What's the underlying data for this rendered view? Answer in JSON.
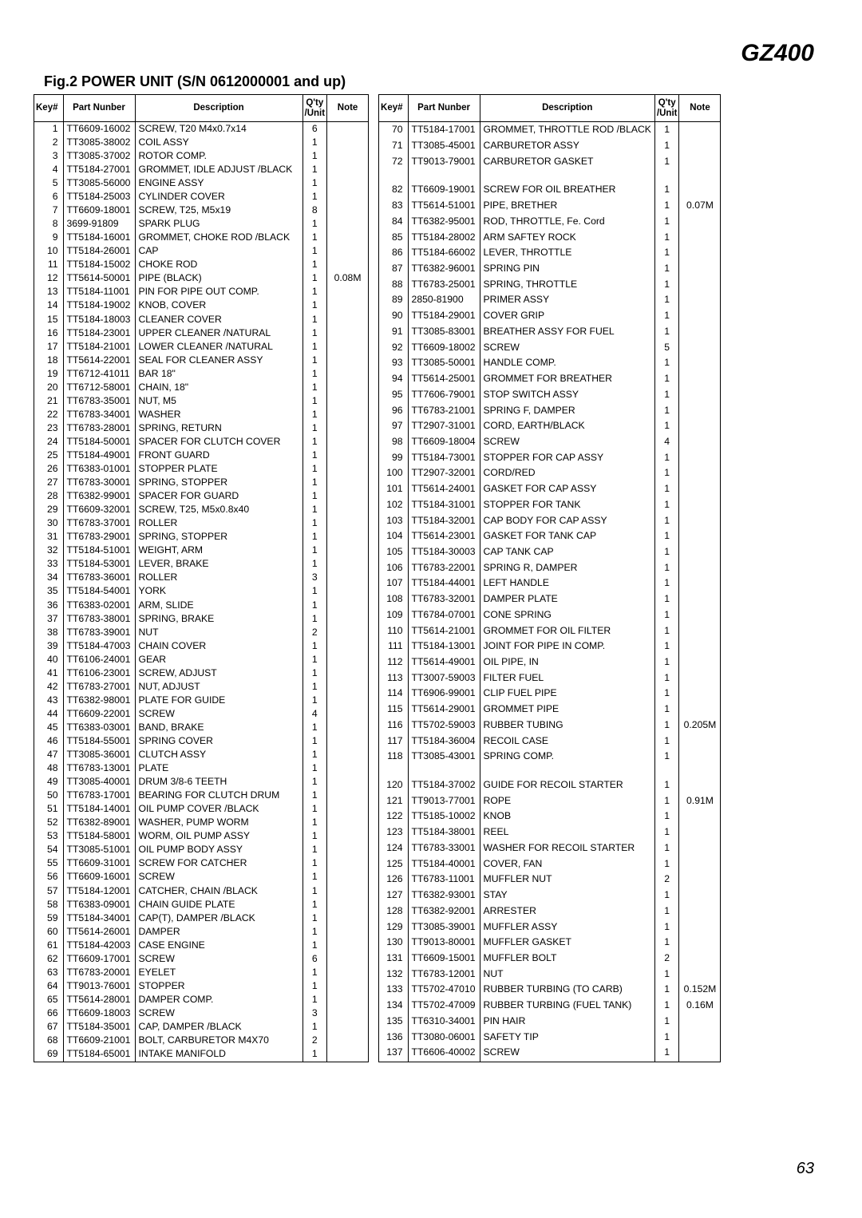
{
  "model": "GZ400",
  "figTitle": "Fig.2 POWER UNIT (S/N 0612000001 and up)",
  "pageNumber": "63",
  "headers": {
    "key": "Key#",
    "pn": "Part Nunber",
    "desc": "Description",
    "qty": "Q'ty\n/Unit",
    "note": "Note"
  },
  "left": [
    {
      "k": "1",
      "p": "TT6609-16002",
      "d": "SCREW, T20 M4x0.7x14",
      "q": "6",
      "n": ""
    },
    {
      "k": "2",
      "p": "TT3085-38002",
      "d": "COIL ASSY",
      "q": "1",
      "n": ""
    },
    {
      "k": "3",
      "p": "TT3085-37002",
      "d": "ROTOR COMP.",
      "q": "1",
      "n": ""
    },
    {
      "k": "4",
      "p": "TT5184-27001",
      "d": "GROMMET, IDLE ADJUST /BLACK",
      "q": "1",
      "n": ""
    },
    {
      "k": "5",
      "p": "TT3085-56000",
      "d": "ENGINE ASSY",
      "q": "1",
      "n": ""
    },
    {
      "k": "6",
      "p": "TT5184-25003",
      "d": "CYLINDER COVER",
      "q": "1",
      "n": ""
    },
    {
      "k": "7",
      "p": "TT6609-18001",
      "d": "SCREW, T25, M5x19",
      "q": "8",
      "n": ""
    },
    {
      "k": "8",
      "p": "3699-91809",
      "d": "SPARK PLUG",
      "q": "1",
      "n": ""
    },
    {
      "k": "9",
      "p": "TT5184-16001",
      "d": "GROMMET, CHOKE ROD /BLACK",
      "q": "1",
      "n": ""
    },
    {
      "k": "10",
      "p": "TT5184-26001",
      "d": "CAP",
      "q": "1",
      "n": ""
    },
    {
      "k": "11",
      "p": "TT5184-15002",
      "d": "CHOKE ROD",
      "q": "1",
      "n": ""
    },
    {
      "k": "12",
      "p": "TT5614-50001",
      "d": "PIPE (BLACK)",
      "q": "1",
      "n": "0.08M"
    },
    {
      "k": "13",
      "p": "TT5184-11001",
      "d": "PIN FOR PIPE OUT COMP.",
      "q": "1",
      "n": ""
    },
    {
      "k": "14",
      "p": "TT5184-19002",
      "d": "KNOB, COVER",
      "q": "1",
      "n": ""
    },
    {
      "k": "15",
      "p": "TT5184-18003",
      "d": "CLEANER COVER",
      "q": "1",
      "n": ""
    },
    {
      "k": "16",
      "p": "TT5184-23001",
      "d": "UPPER CLEANER /NATURAL",
      "q": "1",
      "n": ""
    },
    {
      "k": "17",
      "p": "TT5184-21001",
      "d": "LOWER CLEANER /NATURAL",
      "q": "1",
      "n": ""
    },
    {
      "k": "18",
      "p": "TT5614-22001",
      "d": "SEAL FOR CLEANER ASSY",
      "q": "1",
      "n": ""
    },
    {
      "k": "19",
      "p": "TT6712-41011",
      "d": "BAR 18\"",
      "q": "1",
      "n": ""
    },
    {
      "k": "20",
      "p": "TT6712-58001",
      "d": "CHAIN, 18\"",
      "q": "1",
      "n": ""
    },
    {
      "k": "21",
      "p": "TT6783-35001",
      "d": "NUT, M5",
      "q": "1",
      "n": ""
    },
    {
      "k": "22",
      "p": "TT6783-34001",
      "d": "WASHER",
      "q": "1",
      "n": ""
    },
    {
      "k": "23",
      "p": "TT6783-28001",
      "d": "SPRING, RETURN",
      "q": "1",
      "n": ""
    },
    {
      "k": "24",
      "p": "TT5184-50001",
      "d": "SPACER FOR CLUTCH COVER",
      "q": "1",
      "n": ""
    },
    {
      "k": "25",
      "p": "TT5184-49001",
      "d": "FRONT GUARD",
      "q": "1",
      "n": ""
    },
    {
      "k": "26",
      "p": "TT6383-01001",
      "d": "STOPPER PLATE",
      "q": "1",
      "n": ""
    },
    {
      "k": "27",
      "p": "TT6783-30001",
      "d": "SPRING, STOPPER",
      "q": "1",
      "n": ""
    },
    {
      "k": "28",
      "p": "TT6382-99001",
      "d": "SPACER FOR GUARD",
      "q": "1",
      "n": ""
    },
    {
      "k": "29",
      "p": "TT6609-32001",
      "d": "SCREW, T25, M5x0.8x40",
      "q": "1",
      "n": ""
    },
    {
      "k": "30",
      "p": "TT6783-37001",
      "d": "ROLLER",
      "q": "1",
      "n": ""
    },
    {
      "k": "31",
      "p": "TT6783-29001",
      "d": "SPRING, STOPPER",
      "q": "1",
      "n": ""
    },
    {
      "k": "32",
      "p": "TT5184-51001",
      "d": "WEIGHT, ARM",
      "q": "1",
      "n": ""
    },
    {
      "k": "33",
      "p": "TT5184-53001",
      "d": "LEVER, BRAKE",
      "q": "1",
      "n": ""
    },
    {
      "k": "34",
      "p": "TT6783-36001",
      "d": "ROLLER",
      "q": "3",
      "n": ""
    },
    {
      "k": "35",
      "p": "TT5184-54001",
      "d": "YORK",
      "q": "1",
      "n": ""
    },
    {
      "k": "36",
      "p": "TT6383-02001",
      "d": "ARM, SLIDE",
      "q": "1",
      "n": ""
    },
    {
      "k": "37",
      "p": "TT6783-38001",
      "d": "SPRING, BRAKE",
      "q": "1",
      "n": ""
    },
    {
      "k": "38",
      "p": "TT6783-39001",
      "d": "NUT",
      "q": "2",
      "n": ""
    },
    {
      "k": "39",
      "p": "TT5184-47003",
      "d": "CHAIN COVER",
      "q": "1",
      "n": ""
    },
    {
      "k": "40",
      "p": "TT6106-24001",
      "d": "GEAR",
      "q": "1",
      "n": ""
    },
    {
      "k": "41",
      "p": "TT6106-23001",
      "d": "SCREW, ADJUST",
      "q": "1",
      "n": ""
    },
    {
      "k": "42",
      "p": "TT6783-27001",
      "d": "NUT, ADJUST",
      "q": "1",
      "n": ""
    },
    {
      "k": "43",
      "p": "TT6382-98001",
      "d": "PLATE FOR GUIDE",
      "q": "1",
      "n": ""
    },
    {
      "k": "44",
      "p": "TT6609-22001",
      "d": "SCREW",
      "q": "4",
      "n": ""
    },
    {
      "k": "45",
      "p": "TT6383-03001",
      "d": "BAND, BRAKE",
      "q": "1",
      "n": ""
    },
    {
      "k": "46",
      "p": "TT5184-55001",
      "d": "SPRING COVER",
      "q": "1",
      "n": ""
    },
    {
      "k": "47",
      "p": "TT3085-36001",
      "d": "CLUTCH ASSY",
      "q": "1",
      "n": ""
    },
    {
      "k": "48",
      "p": "TT6783-13001",
      "d": "PLATE",
      "q": "1",
      "n": ""
    },
    {
      "k": "49",
      "p": "TT3085-40001",
      "d": "DRUM 3/8-6 TEETH",
      "q": "1",
      "n": ""
    },
    {
      "k": "50",
      "p": "TT6783-17001",
      "d": "BEARING FOR CLUTCH DRUM",
      "q": "1",
      "n": ""
    },
    {
      "k": "51",
      "p": "TT5184-14001",
      "d": "OIL PUMP COVER /BLACK",
      "q": "1",
      "n": ""
    },
    {
      "k": "52",
      "p": "TT6382-89001",
      "d": "WASHER, PUMP WORM",
      "q": "1",
      "n": ""
    },
    {
      "k": "53",
      "p": "TT5184-58001",
      "d": "WORM, OIL PUMP ASSY",
      "q": "1",
      "n": ""
    },
    {
      "k": "54",
      "p": "TT3085-51001",
      "d": "OIL PUMP BODY ASSY",
      "q": "1",
      "n": ""
    },
    {
      "k": "55",
      "p": "TT6609-31001",
      "d": "SCREW FOR CATCHER",
      "q": "1",
      "n": ""
    },
    {
      "k": "56",
      "p": "TT6609-16001",
      "d": "SCREW",
      "q": "1",
      "n": ""
    },
    {
      "k": "57",
      "p": "TT5184-12001",
      "d": "CATCHER, CHAIN /BLACK",
      "q": "1",
      "n": ""
    },
    {
      "k": "58",
      "p": "TT6383-09001",
      "d": "CHAIN GUIDE PLATE",
      "q": "1",
      "n": ""
    },
    {
      "k": "59",
      "p": "TT5184-34001",
      "d": "CAP(T), DAMPER /BLACK",
      "q": "1",
      "n": ""
    },
    {
      "k": "60",
      "p": "TT5614-26001",
      "d": "DAMPER",
      "q": "1",
      "n": ""
    },
    {
      "k": "61",
      "p": "TT5184-42003",
      "d": "CASE ENGINE",
      "q": "1",
      "n": ""
    },
    {
      "k": "62",
      "p": "TT6609-17001",
      "d": "SCREW",
      "q": "6",
      "n": ""
    },
    {
      "k": "63",
      "p": "TT6783-20001",
      "d": "EYELET",
      "q": "1",
      "n": ""
    },
    {
      "k": "64",
      "p": "TT9013-76001",
      "d": "STOPPER",
      "q": "1",
      "n": ""
    },
    {
      "k": "65",
      "p": "TT5614-28001",
      "d": "DAMPER  COMP.",
      "q": "1",
      "n": ""
    },
    {
      "k": "66",
      "p": "TT6609-18003",
      "d": "SCREW",
      "q": "3",
      "n": ""
    },
    {
      "k": "67",
      "p": "TT5184-35001",
      "d": "CAP, DAMPER /BLACK",
      "q": "1",
      "n": ""
    },
    {
      "k": "68",
      "p": "TT6609-21001",
      "d": "BOLT, CARBURETOR M4X70",
      "q": "2",
      "n": ""
    },
    {
      "k": "69",
      "p": "TT5184-65001",
      "d": "INTAKE MANIFOLD",
      "q": "1",
      "n": ""
    }
  ],
  "right": [
    {
      "k": "70",
      "p": "TT5184-17001",
      "d": "GROMMET, THROTTLE ROD /BLACK",
      "q": "1",
      "n": ""
    },
    {
      "k": "71",
      "p": "TT3085-45001",
      "d": "CARBURETOR ASSY",
      "q": "1",
      "n": ""
    },
    {
      "k": "72",
      "p": "TT9013-79001",
      "d": "CARBURETOR GASKET",
      "q": "1",
      "n": ""
    },
    {
      "blank": true
    },
    {
      "k": "82",
      "p": "TT6609-19001",
      "d": "SCREW FOR OIL BREATHER",
      "q": "1",
      "n": ""
    },
    {
      "k": "83",
      "p": "TT5614-51001",
      "d": "PIPE, BRETHER",
      "q": "1",
      "n": "0.07M"
    },
    {
      "k": "84",
      "p": "TT6382-95001",
      "d": "ROD, THROTTLE, Fe. Cord",
      "q": "1",
      "n": ""
    },
    {
      "k": "85",
      "p": "TT5184-28002",
      "d": "ARM SAFTEY ROCK",
      "q": "1",
      "n": ""
    },
    {
      "k": "86",
      "p": "TT5184-66002",
      "d": "LEVER, THROTTLE",
      "q": "1",
      "n": ""
    },
    {
      "k": "87",
      "p": "TT6382-96001",
      "d": "SPRING PIN",
      "q": "1",
      "n": ""
    },
    {
      "k": "88",
      "p": "TT6783-25001",
      "d": "SPRING, THROTTLE",
      "q": "1",
      "n": ""
    },
    {
      "k": "89",
      "p": "2850-81900",
      "d": "PRIMER ASSY",
      "q": "1",
      "n": ""
    },
    {
      "k": "90",
      "p": "TT5184-29001",
      "d": "COVER GRIP",
      "q": "1",
      "n": ""
    },
    {
      "k": "91",
      "p": "TT3085-83001",
      "d": "BREATHER ASSY FOR FUEL",
      "q": "1",
      "n": ""
    },
    {
      "k": "92",
      "p": "TT6609-18002",
      "d": "SCREW",
      "q": "5",
      "n": ""
    },
    {
      "k": "93",
      "p": "TT3085-50001",
      "d": "HANDLE  COMP.",
      "q": "1",
      "n": ""
    },
    {
      "k": "94",
      "p": "TT5614-25001",
      "d": "GROMMET FOR BREATHER",
      "q": "1",
      "n": ""
    },
    {
      "k": "95",
      "p": "TT7606-79001",
      "d": "STOP SWITCH ASSY",
      "q": "1",
      "n": ""
    },
    {
      "k": "96",
      "p": "TT6783-21001",
      "d": "SPRING F, DAMPER",
      "q": "1",
      "n": ""
    },
    {
      "k": "97",
      "p": "TT2907-31001",
      "d": "CORD, EARTH/BLACK",
      "q": "1",
      "n": ""
    },
    {
      "k": "98",
      "p": "TT6609-18004",
      "d": "SCREW",
      "q": "4",
      "n": ""
    },
    {
      "k": "99",
      "p": "TT5184-73001",
      "d": "STOPPER FOR CAP ASSY",
      "q": "1",
      "n": ""
    },
    {
      "k": "100",
      "p": "TT2907-32001",
      "d": "CORD/RED",
      "q": "1",
      "n": ""
    },
    {
      "k": "101",
      "p": "TT5614-24001",
      "d": "GASKET FOR CAP ASSY",
      "q": "1",
      "n": ""
    },
    {
      "k": "102",
      "p": "TT5184-31001",
      "d": "STOPPER FOR TANK",
      "q": "1",
      "n": ""
    },
    {
      "k": "103",
      "p": "TT5184-32001",
      "d": "CAP BODY FOR CAP ASSY",
      "q": "1",
      "n": ""
    },
    {
      "k": "104",
      "p": "TT5614-23001",
      "d": "GASKET FOR TANK CAP",
      "q": "1",
      "n": ""
    },
    {
      "k": "105",
      "p": "TT5184-30003",
      "d": "CAP TANK CAP",
      "q": "1",
      "n": ""
    },
    {
      "k": "106",
      "p": "TT6783-22001",
      "d": "SPRING R, DAMPER",
      "q": "1",
      "n": ""
    },
    {
      "k": "107",
      "p": "TT5184-44001",
      "d": "LEFT HANDLE",
      "q": "1",
      "n": ""
    },
    {
      "k": "108",
      "p": "TT6783-32001",
      "d": "DAMPER PLATE",
      "q": "1",
      "n": ""
    },
    {
      "k": "109",
      "p": "TT6784-07001",
      "d": "CONE SPRING",
      "q": "1",
      "n": ""
    },
    {
      "k": "110",
      "p": "TT5614-21001",
      "d": "GROMMET FOR OIL FILTER",
      "q": "1",
      "n": ""
    },
    {
      "k": "111",
      "p": "TT5184-13001",
      "d": "JOINT FOR PIPE IN  COMP.",
      "q": "1",
      "n": ""
    },
    {
      "k": "112",
      "p": "TT5614-49001",
      "d": "OIL PIPE, IN",
      "q": "1",
      "n": ""
    },
    {
      "k": "113",
      "p": "TT3007-59003",
      "d": "FILTER FUEL",
      "q": "1",
      "n": ""
    },
    {
      "k": "114",
      "p": "TT6906-99001",
      "d": "CLIP FUEL PIPE",
      "q": "1",
      "n": ""
    },
    {
      "k": "115",
      "p": "TT5614-29001",
      "d": "GROMMET PIPE",
      "q": "1",
      "n": ""
    },
    {
      "k": "116",
      "p": "TT5702-59003",
      "d": "RUBBER TUBING",
      "q": "1",
      "n": "0.205M"
    },
    {
      "k": "117",
      "p": "TT5184-36004",
      "d": "RECOIL CASE",
      "q": "1",
      "n": ""
    },
    {
      "k": "118",
      "p": "TT3085-43001",
      "d": "SPRING COMP.",
      "q": "1",
      "n": ""
    },
    {
      "blank": true
    },
    {
      "k": "120",
      "p": "TT5184-37002",
      "d": "GUIDE FOR RECOIL STARTER",
      "q": "1",
      "n": ""
    },
    {
      "k": "121",
      "p": "TT9013-77001",
      "d": "ROPE",
      "q": "1",
      "n": "0.91M"
    },
    {
      "k": "122",
      "p": "TT5185-10002",
      "d": "KNOB",
      "q": "1",
      "n": ""
    },
    {
      "k": "123",
      "p": "TT5184-38001",
      "d": "REEL",
      "q": "1",
      "n": ""
    },
    {
      "k": "124",
      "p": "TT6783-33001",
      "d": "WASHER FOR RECOIL STARTER",
      "q": "1",
      "n": ""
    },
    {
      "k": "125",
      "p": "TT5184-40001",
      "d": "COVER, FAN",
      "q": "1",
      "n": ""
    },
    {
      "k": "126",
      "p": "TT6783-11001",
      "d": "MUFFLER NUT",
      "q": "2",
      "n": ""
    },
    {
      "k": "127",
      "p": "TT6382-93001",
      "d": "STAY",
      "q": "1",
      "n": ""
    },
    {
      "k": "128",
      "p": "TT6382-92001",
      "d": "ARRESTER",
      "q": "1",
      "n": ""
    },
    {
      "k": "129",
      "p": "TT3085-39001",
      "d": "MUFFLER ASSY",
      "q": "1",
      "n": ""
    },
    {
      "k": "130",
      "p": "TT9013-80001",
      "d": "MUFFLER GASKET",
      "q": "1",
      "n": ""
    },
    {
      "k": "131",
      "p": "TT6609-15001",
      "d": "MUFFLER BOLT",
      "q": "2",
      "n": ""
    },
    {
      "k": "132",
      "p": "TT6783-12001",
      "d": "NUT",
      "q": "1",
      "n": ""
    },
    {
      "k": "133",
      "p": "TT5702-47010",
      "d": "RUBBER TURBING (TO CARB)",
      "q": "1",
      "n": "0.152M"
    },
    {
      "k": "134",
      "p": "TT5702-47009",
      "d": "RUBBER TURBING (FUEL TANK)",
      "q": "1",
      "n": "0.16M"
    },
    {
      "k": "135",
      "p": "TT6310-34001",
      "d": "PIN HAIR",
      "q": "1",
      "n": ""
    },
    {
      "k": "136",
      "p": "TT3080-06001",
      "d": "SAFETY TIP",
      "q": "1",
      "n": ""
    },
    {
      "k": "137",
      "p": "TT6606-40002",
      "d": "SCREW",
      "q": "1",
      "n": ""
    }
  ]
}
